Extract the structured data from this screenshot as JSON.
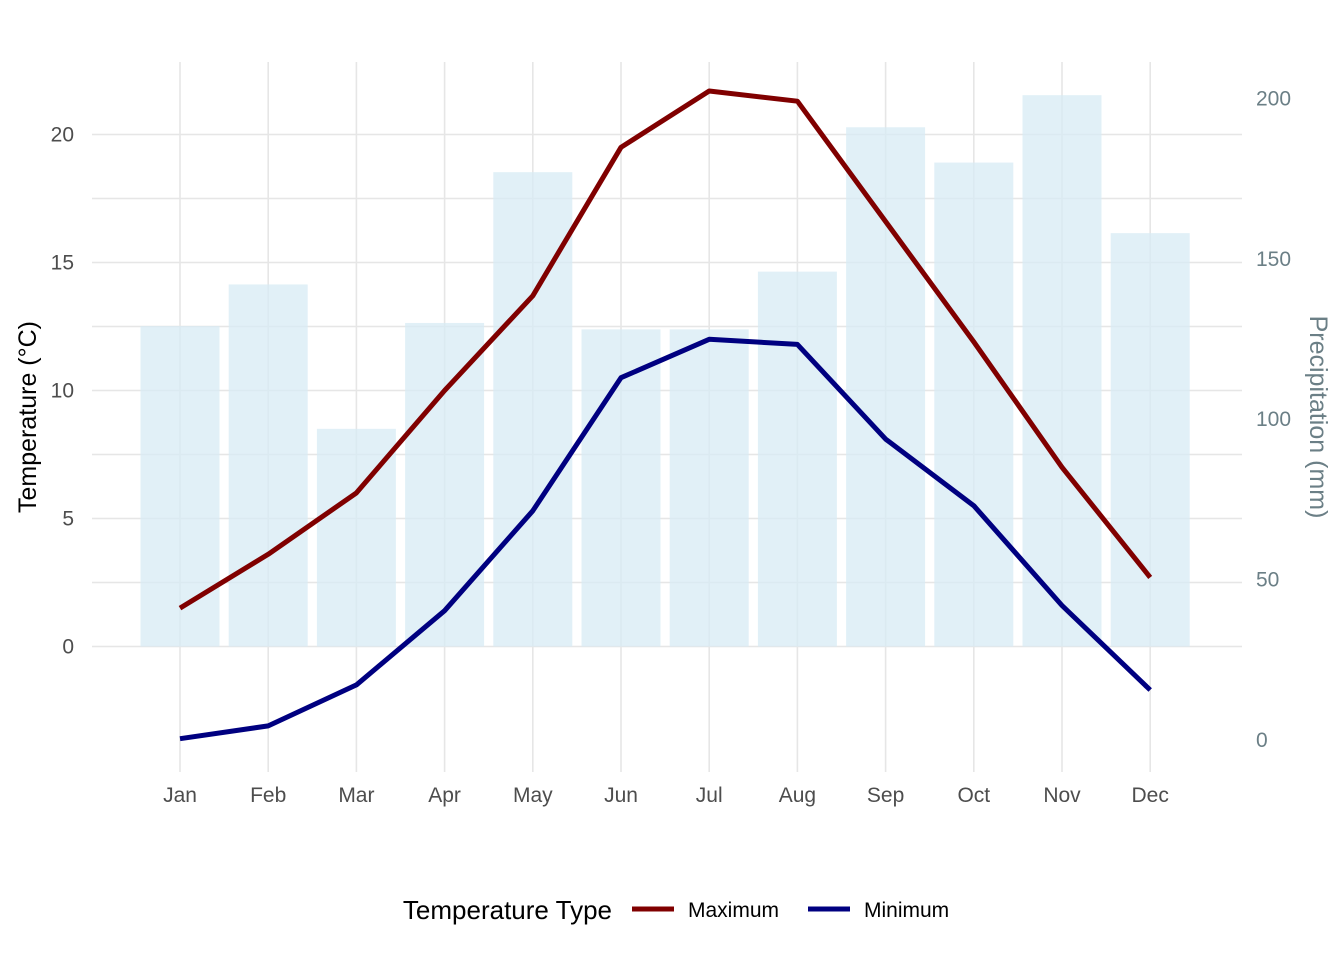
{
  "chart_data": {
    "type": "bar+line",
    "categories": [
      "Jan",
      "Feb",
      "Mar",
      "Apr",
      "May",
      "Jun",
      "Jul",
      "Aug",
      "Sep",
      "Oct",
      "Nov",
      "Dec"
    ],
    "precipitation": {
      "axis": "right",
      "values": [
        129,
        142,
        97,
        130,
        177,
        128,
        128,
        146,
        191,
        180,
        201,
        158
      ],
      "color": "#d7ebf4"
    },
    "series": [
      {
        "name": "Maximum",
        "axis": "left",
        "color": "#800000",
        "values": [
          1.5,
          3.6,
          6.0,
          10.0,
          13.7,
          19.5,
          21.7,
          21.3,
          16.6,
          11.9,
          7.0,
          2.7
        ]
      },
      {
        "name": "Minimum",
        "axis": "left",
        "color": "#000080",
        "values": [
          -3.6,
          -3.1,
          -1.5,
          1.4,
          5.3,
          10.5,
          12.0,
          11.8,
          8.1,
          5.5,
          1.6,
          -1.7
        ]
      }
    ],
    "ylabel": "Temperature (°C)",
    "y2label": "Precipitation (mm)",
    "ylim": [
      -5.2,
      23
    ],
    "y2lim": [
      -5,
      215
    ],
    "yticks": [
      0,
      5,
      10,
      15,
      20
    ],
    "y2ticks": [
      0,
      50,
      100,
      150,
      200
    ],
    "legend": {
      "title": "Temperature Type",
      "position": "bottom"
    },
    "grid": true
  }
}
